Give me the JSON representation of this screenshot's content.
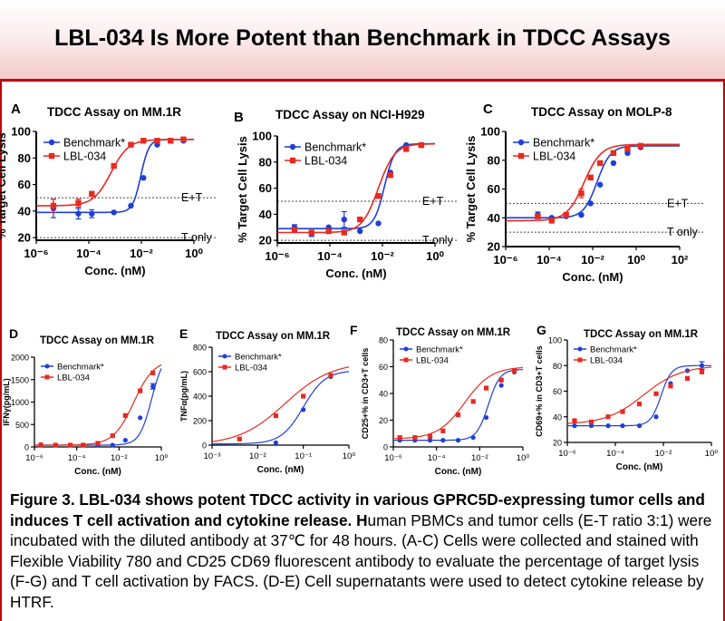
{
  "page_title": "LBL-034 Is More Potent than Benchmark in TDCC Assays",
  "colors": {
    "benchmark": "#1f3fd6",
    "lbl034": "#e62a20",
    "header_rule": "#c00000"
  },
  "caption": {
    "bold": "Figure 3. LBL-034 shows potent TDCC activity in various GPRC5D-expressing tumor cells and induces T cell activation and cytokine release. H",
    "normal": "uman PBMCs and tumor cells (E-T ratio 3:1) were incubated with the diluted antibody at 37℃ for 48 hours. (A-C) Cells were collected and stained with Flexible Viability 780 and CD25 CD69 fluorescent antibody to evaluate the percentage of target lysis (F-G) and T cell activation by FACS. (D-E) Cell supernatants were used to detect cytokine release by HTRF."
  },
  "chart_data": [
    {
      "panel": "A",
      "type": "line",
      "title": "TDCC Assay on MM.1R",
      "xlabel": "Conc. (nM)",
      "ylabel": "% Target Cell Lysis",
      "x_scale": "log",
      "xlim": [
        1e-06,
        1
      ],
      "x_ticks": [
        "10⁻⁶",
        "10⁻⁴",
        "10⁻²",
        "10⁰"
      ],
      "ylim": [
        18,
        100
      ],
      "y_ticks": [
        20,
        40,
        60,
        80,
        100
      ],
      "reference_lines": [
        {
          "y": 50,
          "label": "E+T"
        },
        {
          "y": 20,
          "label": "T only"
        }
      ],
      "legend": "top-left",
      "grid": false,
      "series": [
        {
          "name": "Benchmark*",
          "color": "#1f3fd6",
          "marker": "circle",
          "x": [
            4.5e-06,
            4e-05,
            0.00013,
            0.0009,
            0.004,
            0.012,
            0.04,
            0.13,
            0.4
          ],
          "y": [
            42,
            38,
            38,
            39,
            44,
            65,
            90,
            93,
            93
          ],
          "err": [
            7,
            4,
            3,
            0,
            0,
            0,
            0,
            0,
            0
          ],
          "fit": {
            "bottom": 39,
            "top": 94,
            "ec50": 0.0095,
            "hill": 2.8
          }
        },
        {
          "name": "LBL-034",
          "color": "#e62a20",
          "marker": "square",
          "x": [
            4.5e-06,
            4e-05,
            0.00013,
            0.0009,
            0.004,
            0.012,
            0.04,
            0.13,
            0.4
          ],
          "y": [
            44,
            46,
            53,
            74,
            90,
            93,
            93,
            93,
            94
          ],
          "err": [
            5,
            3,
            0,
            0,
            0,
            0,
            0,
            0,
            0
          ],
          "fit": {
            "bottom": 44,
            "top": 94,
            "ec50": 0.0007,
            "hill": 1.3
          }
        }
      ]
    },
    {
      "panel": "B",
      "type": "line",
      "title": "TDCC Assay  on NCI-H929",
      "xlabel": "Conc. (nM)",
      "ylabel": "% Target Cell Lysis",
      "x_scale": "log",
      "xlim": [
        1e-06,
        1
      ],
      "x_ticks": [
        "10⁻⁶",
        "10⁻⁴",
        "10⁻²",
        "10⁰"
      ],
      "ylim": [
        18,
        100
      ],
      "y_ticks": [
        20,
        40,
        60,
        80,
        100
      ],
      "reference_lines": [
        {
          "y": 50,
          "label": "E+T"
        },
        {
          "y": 20,
          "label": "T only"
        }
      ],
      "legend": "top-left",
      "grid": false,
      "series": [
        {
          "name": "Benchmark*",
          "color": "#1f3fd6",
          "marker": "circle",
          "x": [
            4.5e-06,
            2e-05,
            9e-05,
            0.00035,
            0.0014,
            0.007,
            0.02,
            0.08,
            0.3
          ],
          "y": [
            30,
            25,
            30,
            36,
            27,
            33,
            72,
            93,
            93
          ],
          "err": [
            2,
            2,
            0,
            6,
            0,
            0,
            0,
            0,
            0
          ],
          "fit": {
            "bottom": 29,
            "top": 94,
            "ec50": 0.012,
            "hill": 2.2
          }
        },
        {
          "name": "LBL-034",
          "color": "#e62a20",
          "marker": "square",
          "x": [
            4.5e-06,
            2e-05,
            9e-05,
            0.00035,
            0.0014,
            0.007,
            0.02,
            0.08,
            0.3
          ],
          "y": [
            28,
            26,
            27,
            26,
            36,
            54,
            70,
            90,
            93
          ],
          "err": [
            0,
            0,
            0,
            0,
            0,
            0,
            0,
            0,
            0
          ],
          "fit": {
            "bottom": 26,
            "top": 94,
            "ec50": 0.007,
            "hill": 1.4
          }
        }
      ]
    },
    {
      "panel": "C",
      "type": "line",
      "title": "TDCC Assay on MOLP-8",
      "xlabel": "Conc. (nM)",
      "ylabel": "% Target Cell Lysis",
      "x_scale": "log",
      "xlim": [
        1e-06,
        100
      ],
      "x_ticks": [
        "10⁻⁶",
        "10⁻⁴",
        "10⁻²",
        "10⁰",
        "10²"
      ],
      "ylim": [
        20,
        100
      ],
      "y_ticks": [
        20,
        40,
        60,
        80,
        100
      ],
      "reference_lines": [
        {
          "y": 50,
          "label": "E+T"
        },
        {
          "y": 30,
          "label": "T only"
        }
      ],
      "legend": "top-left",
      "grid": false,
      "series": [
        {
          "name": "Benchmark*",
          "color": "#1f3fd6",
          "marker": "circle",
          "x": [
            3e-05,
            0.00013,
            0.0006,
            0.003,
            0.008,
            0.022,
            0.09,
            0.4,
            1.6
          ],
          "y": [
            42,
            40,
            41,
            42,
            50,
            63,
            78,
            85,
            89
          ],
          "err": [
            2,
            0,
            0,
            0,
            0,
            0,
            0,
            0,
            0
          ],
          "fit": {
            "bottom": 40,
            "top": 90,
            "ec50": 0.016,
            "hill": 1.4
          }
        },
        {
          "name": "LBL-034",
          "color": "#e62a20",
          "marker": "square",
          "x": [
            3e-05,
            0.00013,
            0.0006,
            0.003,
            0.008,
            0.022,
            0.09,
            0.4,
            1.6
          ],
          "y": [
            41,
            38,
            42,
            57,
            68,
            78,
            85,
            88,
            90
          ],
          "err": [
            0,
            0,
            0,
            3,
            0,
            0,
            0,
            0,
            0
          ],
          "fit": {
            "bottom": 38,
            "top": 91,
            "ec50": 0.004,
            "hill": 1.1
          }
        }
      ]
    },
    {
      "panel": "D",
      "type": "line",
      "title": "TDCC Assay on MM.1R",
      "xlabel": "Conc. (nM)",
      "ylabel": "IFNγ(pg/mL)",
      "x_scale": "log",
      "xlim": [
        1e-06,
        1
      ],
      "x_ticks": [
        "10⁻⁶",
        "10⁻⁴",
        "10⁻²",
        "10⁰"
      ],
      "ylim": [
        0,
        2000
      ],
      "y_ticks": [
        0,
        500,
        1000,
        1500,
        2000
      ],
      "legend": "top-left",
      "grid": false,
      "series": [
        {
          "name": "Benchmark*",
          "color": "#1f3fd6",
          "marker": "circle",
          "x": [
            2e-06,
            1e-05,
            5e-05,
            0.0002,
            0.001,
            0.005,
            0.02,
            0.1,
            0.4
          ],
          "y": [
            50,
            40,
            40,
            40,
            40,
            40,
            150,
            650,
            1350
          ],
          "err": [
            0,
            0,
            0,
            0,
            0,
            0,
            0,
            0,
            60
          ],
          "fit": {
            "bottom": 40,
            "top": 2100,
            "ec50": 0.35,
            "hill": 1.5
          }
        },
        {
          "name": "LBL-034",
          "color": "#e62a20",
          "marker": "square",
          "x": [
            2e-06,
            1e-05,
            5e-05,
            0.0002,
            0.001,
            0.005,
            0.02,
            0.1,
            0.4
          ],
          "y": [
            40,
            40,
            40,
            40,
            80,
            250,
            700,
            1250,
            1650
          ],
          "err": [
            0,
            0,
            0,
            0,
            0,
            0,
            0,
            0,
            0
          ],
          "fit": {
            "bottom": 40,
            "top": 1950,
            "ec50": 0.05,
            "hill": 0.9
          }
        }
      ]
    },
    {
      "panel": "E",
      "type": "line",
      "title": "TDCC Assay on MM.1R",
      "xlabel": "Conc. (nM)",
      "ylabel": "TNFα(pg/mL)",
      "x_scale": "log",
      "xlim": [
        0.001,
        1
      ],
      "x_ticks": [
        "10⁻³",
        "10⁻²",
        "10⁻¹",
        "10⁰"
      ],
      "ylim": [
        0,
        800
      ],
      "y_ticks": [
        0,
        200,
        400,
        600,
        800
      ],
      "legend": "top-left",
      "grid": false,
      "series": [
        {
          "name": "Benchmark*",
          "color": "#1f3fd6",
          "marker": "circle",
          "x": [
            0.025,
            0.1,
            0.4
          ],
          "y": [
            20,
            290,
            560
          ],
          "err": [
            0,
            0,
            0
          ],
          "fit": {
            "bottom": 10,
            "top": 610,
            "ec50": 0.1,
            "hill": 1.8
          }
        },
        {
          "name": "LBL-034",
          "color": "#e62a20",
          "marker": "square",
          "x": [
            0.004,
            0.025,
            0.1,
            0.4
          ],
          "y": [
            50,
            240,
            400,
            570
          ],
          "err": [
            0,
            0,
            0,
            0
          ],
          "fit": {
            "bottom": 0,
            "top": 680,
            "ec50": 0.04,
            "hill": 0.85
          }
        }
      ]
    },
    {
      "panel": "F",
      "type": "line",
      "title": "TDCC Assay on MM.1R",
      "xlabel": "Conc. (nM)",
      "ylabel": "CD25+% in CD3+T cells",
      "x_scale": "log",
      "xlim": [
        1e-06,
        1
      ],
      "x_ticks": [
        "10⁻⁶",
        "10⁻⁴",
        "10⁻²",
        "10⁰"
      ],
      "ylim": [
        0,
        80
      ],
      "y_ticks": [
        0,
        20,
        40,
        60,
        80
      ],
      "legend": "top-left",
      "grid": false,
      "series": [
        {
          "name": "Benchmark*",
          "color": "#1f3fd6",
          "marker": "circle",
          "x": [
            2e-06,
            1e-05,
            5e-05,
            0.0002,
            0.001,
            0.005,
            0.02,
            0.1,
            0.4
          ],
          "y": [
            5,
            5,
            5,
            5,
            5,
            7,
            22,
            46,
            56
          ],
          "err": [
            0,
            0,
            0,
            0,
            0,
            0,
            0,
            0,
            0
          ],
          "fit": {
            "bottom": 5,
            "top": 58,
            "ec50": 0.025,
            "hill": 1.6
          }
        },
        {
          "name": "LBL-034",
          "color": "#e62a20",
          "marker": "square",
          "x": [
            2e-06,
            1e-05,
            5e-05,
            0.0002,
            0.001,
            0.005,
            0.02,
            0.1,
            0.4
          ],
          "y": [
            7,
            7,
            8,
            12,
            24,
            34,
            44,
            50,
            57
          ],
          "err": [
            0,
            0,
            0,
            0,
            0,
            0,
            0,
            0,
            0
          ],
          "fit": {
            "bottom": 6,
            "top": 60,
            "ec50": 0.002,
            "hill": 0.7
          }
        }
      ]
    },
    {
      "panel": "G",
      "type": "line",
      "title": "TDCC Assay on MM.1R",
      "xlabel": "Conc. (nM)",
      "ylabel": "CD69+% in CD3+T cells",
      "x_scale": "log",
      "xlim": [
        1e-06,
        1
      ],
      "x_ticks": [
        "10⁻⁶",
        "10⁻⁴",
        "10⁻²",
        "10⁰"
      ],
      "ylim": [
        20,
        100
      ],
      "y_ticks": [
        20,
        40,
        60,
        80,
        100
      ],
      "legend": "top-left",
      "grid": false,
      "series": [
        {
          "name": "Benchmark*",
          "color": "#1f3fd6",
          "marker": "circle",
          "x": [
            2e-06,
            1e-05,
            5e-05,
            0.0002,
            0.001,
            0.005,
            0.02,
            0.1,
            0.4
          ],
          "y": [
            33,
            33,
            33,
            33,
            33,
            40,
            66,
            76,
            80
          ],
          "err": [
            0,
            0,
            0,
            0,
            0,
            0,
            0,
            0,
            3
          ],
          "fit": {
            "bottom": 33,
            "top": 80,
            "ec50": 0.008,
            "hill": 2.0
          }
        },
        {
          "name": "LBL-034",
          "color": "#e62a20",
          "marker": "square",
          "x": [
            2e-06,
            1e-05,
            5e-05,
            0.0002,
            0.001,
            0.005,
            0.02,
            0.1,
            0.4
          ],
          "y": [
            37,
            36,
            40,
            44,
            50,
            58,
            64,
            70,
            75
          ],
          "err": [
            0,
            0,
            0,
            0,
            0,
            0,
            0,
            0,
            0
          ],
          "fit": {
            "bottom": 34,
            "top": 80,
            "ec50": 0.0015,
            "hill": 0.55
          }
        }
      ]
    }
  ]
}
